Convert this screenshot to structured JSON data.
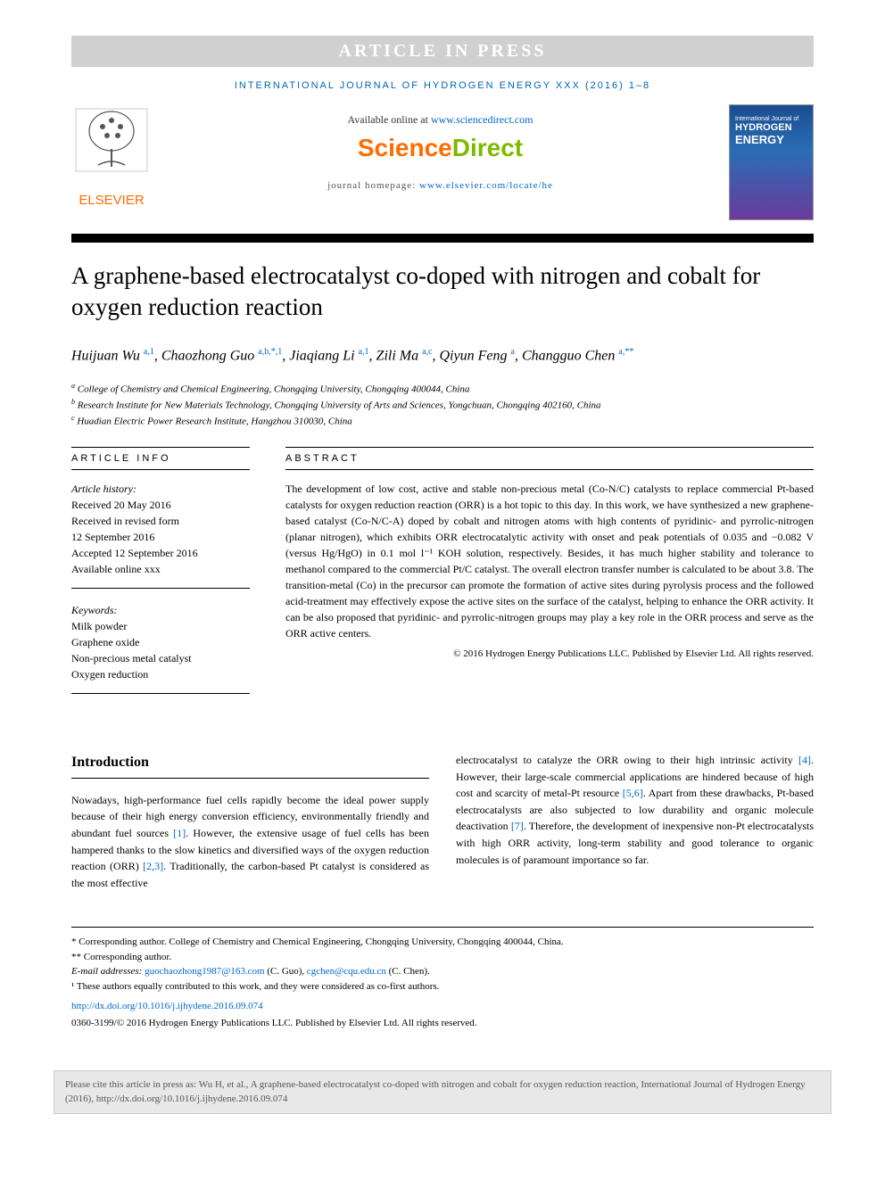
{
  "banner": "ARTICLE IN PRESS",
  "journal_header": "INTERNATIONAL JOURNAL OF HYDROGEN ENERGY XXX (2016) 1–8",
  "available_prefix": "Available online at ",
  "available_link": "www.sciencedirect.com",
  "sd_brand_a": "Science",
  "sd_brand_b": "Direct",
  "homepage_prefix": "journal homepage: ",
  "homepage_link": "www.elsevier.com/locate/he",
  "elsevier_label": "ELSEVIER",
  "cover": {
    "line1": "International Journal of",
    "line2": "HYDROGEN",
    "line3": "ENERGY"
  },
  "title": "A graphene-based electrocatalyst co-doped with nitrogen and cobalt for oxygen reduction reaction",
  "authors_html": "Huijuan Wu <sup>a,1</sup>, Chaozhong Guo <sup>a,b,*,1</sup>, Jiaqiang Li <sup>a,1</sup>, Zili Ma <sup>a,c</sup>, Qiyun Feng <sup>a</sup>, Changguo Chen <sup>a,**</sup>",
  "affiliations": {
    "a": "College of Chemistry and Chemical Engineering, Chongqing University, Chongqing 400044, China",
    "b": "Research Institute for New Materials Technology, Chongqing University of Arts and Sciences, Yongchuan, Chongqing 402160, China",
    "c": "Huadian Electric Power Research Institute, Hangzhou 310030, China"
  },
  "headers": {
    "info": "ARTICLE INFO",
    "abstract": "ABSTRACT"
  },
  "history": {
    "label": "Article history:",
    "received": "Received 20 May 2016",
    "revised1": "Received in revised form",
    "revised2": "12 September 2016",
    "accepted": "Accepted 12 September 2016",
    "online": "Available online xxx"
  },
  "keywords": {
    "label": "Keywords:",
    "k1": "Milk powder",
    "k2": "Graphene oxide",
    "k3": "Non-precious metal catalyst",
    "k4": "Oxygen reduction"
  },
  "abstract": "The development of low cost, active and stable non-precious metal (Co-N/C) catalysts to replace commercial Pt-based catalysts for oxygen reduction reaction (ORR) is a hot topic to this day. In this work, we have synthesized a new graphene-based catalyst (Co-N/C-A) doped by cobalt and nitrogen atoms with high contents of pyridinic- and pyrrolic-nitrogen (planar nitrogen), which exhibits ORR electrocatalytic activity with onset and peak potentials of 0.035 and −0.082 V (versus Hg/HgO) in 0.1 mol l⁻¹ KOH solution, respectively. Besides, it has much higher stability and tolerance to methanol compared to the commercial Pt/C catalyst. The overall electron transfer number is calculated to be about 3.8. The transition-metal (Co) in the precursor can promote the formation of active sites during pyrolysis process and the followed acid-treatment may effectively expose the active sites on the surface of the catalyst, helping to enhance the ORR activity. It can be also proposed that pyridinic- and pyrrolic-nitrogen groups may play a key role in the ORR process and serve as the ORR active centers.",
  "copyright_abs": "© 2016 Hydrogen Energy Publications LLC. Published by Elsevier Ltd. All rights reserved.",
  "intro_heading": "Introduction",
  "intro_col1": "Nowadays, high-performance fuel cells rapidly become the ideal power supply because of their high energy conversion efficiency, environmentally friendly and abundant fuel sources [1]. However, the extensive usage of fuel cells has been hampered thanks to the slow kinetics and diversified ways of the oxygen reduction reaction (ORR) [2,3]. Traditionally, the carbon-based Pt catalyst is considered as the most effective",
  "intro_col2": "electrocatalyst to catalyze the ORR owing to their high intrinsic activity [4]. However, their large-scale commercial applications are hindered because of high cost and scarcity of metal-Pt resource [5,6]. Apart from these drawbacks, Pt-based electrocatalysts are also subjected to low durability and organic molecule deactivation [7]. Therefore, the development of inexpensive non-Pt electrocatalysts with high ORR activity, long-term stability and good tolerance to organic molecules is of paramount importance so far.",
  "footnotes": {
    "corr1": "* Corresponding author. College of Chemistry and Chemical Engineering, Chongqing University, Chongqing 400044, China.",
    "corr2": "** Corresponding author.",
    "email_label": "E-mail addresses: ",
    "email1": "guochaozhong1987@163.com",
    "email1_who": " (C. Guo), ",
    "email2": "cgchen@cqu.edu.cn",
    "email2_who": " (C. Chen).",
    "equal": "¹ These authors equally contributed to this work, and they were considered as co-first authors."
  },
  "doi": "http://dx.doi.org/10.1016/j.ijhydene.2016.09.074",
  "issn": "0360-3199/© 2016 Hydrogen Energy Publications LLC. Published by Elsevier Ltd. All rights reserved.",
  "cite_box": "Please cite this article in press as: Wu H, et al., A graphene-based electrocatalyst co-doped with nitrogen and cobalt for oxygen reduction reaction, International Journal of Hydrogen Energy (2016), http://dx.doi.org/10.1016/j.ijhydene.2016.09.074",
  "colors": {
    "banner_bg": "#d0d0d0",
    "link": "#0066cc",
    "orange": "#ff6c00",
    "green": "#7fba00",
    "journal_blue": "#0066b3"
  }
}
